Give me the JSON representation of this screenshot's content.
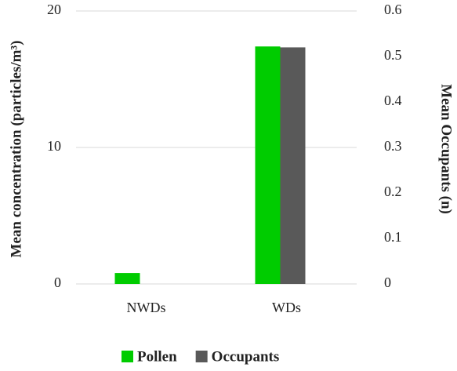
{
  "chart_data": {
    "type": "bar",
    "categories": [
      "NWDs",
      "WDs"
    ],
    "series": [
      {
        "name": "Pollen",
        "color": "#00cc00",
        "values": [
          0.8,
          17.4
        ]
      },
      {
        "name": "Occupants",
        "color": "#595959",
        "values": [
          0,
          0.52
        ],
        "axis": "y2"
      }
    ],
    "ylabel": "Mean concentration (particles/m³)",
    "y2label": "Mean Occupants (n)",
    "ylim": [
      0,
      20
    ],
    "yticks": [
      0,
      10,
      20
    ],
    "y2lim": [
      0,
      0.6
    ],
    "y2ticks": [
      0,
      0.1,
      0.2,
      0.3,
      0.4,
      0.5,
      0.6
    ],
    "grid": true,
    "legend": "bottom"
  }
}
